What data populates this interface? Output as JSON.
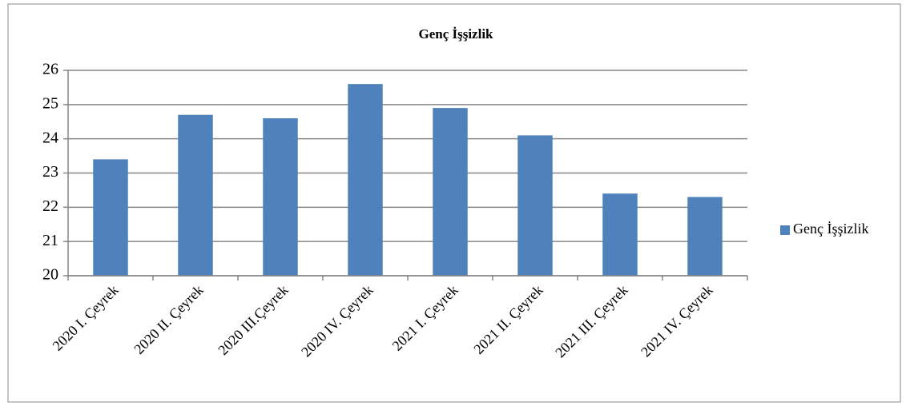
{
  "chart_data": {
    "type": "bar",
    "title": "Genç İşşizlik",
    "categories": [
      "2020 I.  Çeyrek",
      "2020 II. Çeyrek",
      "2020 III.Çeyrek",
      "2020 IV. Çeyrek",
      "2021 I. Çeyrek",
      "2021 II. Çeyrek",
      "2021 III. Çeyrek",
      "2021 IV. Çeyrek"
    ],
    "series": [
      {
        "name": "Genç İşşizlik",
        "color": "#4f81bd",
        "values": [
          23.4,
          24.7,
          24.6,
          25.6,
          24.9,
          24.1,
          22.4,
          22.3
        ]
      }
    ],
    "ylim": [
      20,
      26
    ],
    "yticks": [
      20,
      21,
      22,
      23,
      24,
      25,
      26
    ],
    "grid": true,
    "legend": "right"
  }
}
